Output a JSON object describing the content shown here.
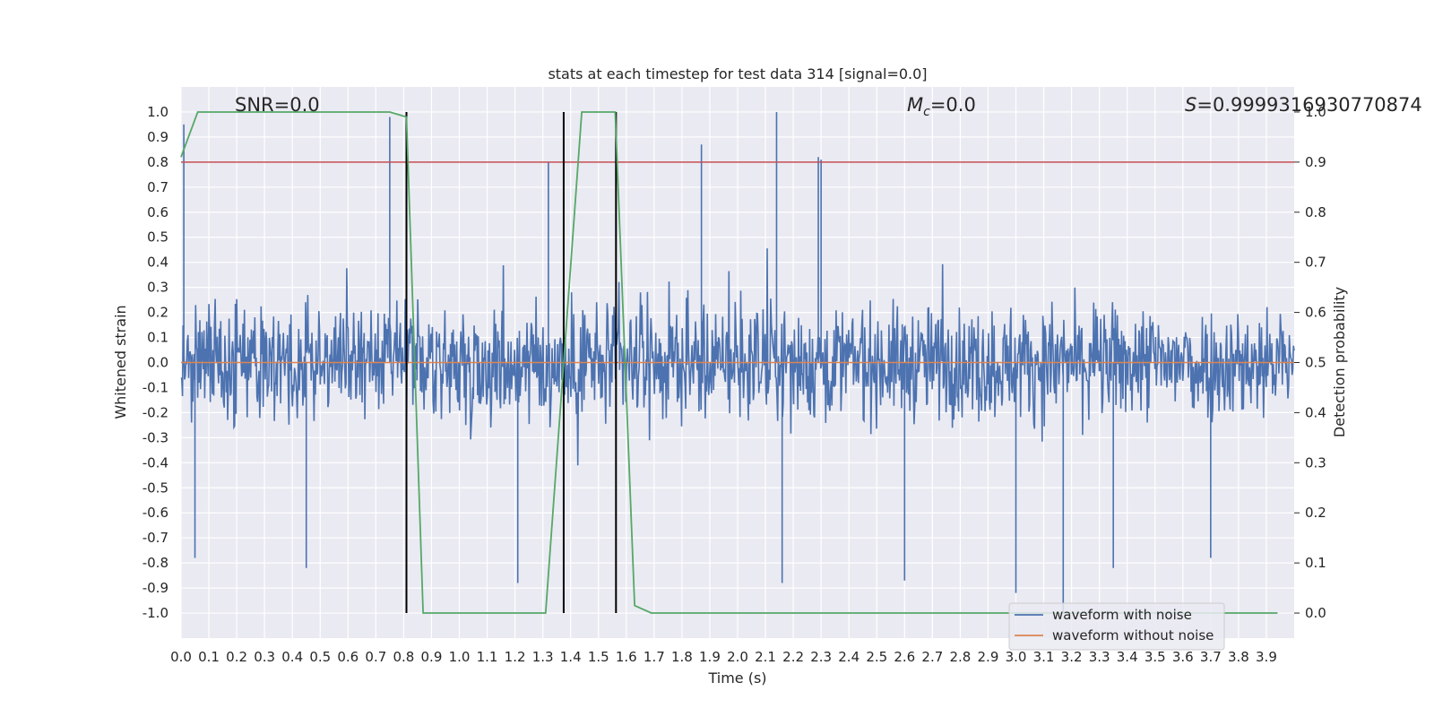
{
  "chart_data": {
    "type": "line",
    "title": "stats at each timestep for test data 314 [signal=0.0]",
    "xlabel": "Time (s)",
    "ylabel": "Whitened strain",
    "y2label": "Detection probability",
    "xlim": [
      0.0,
      4.0
    ],
    "ylim": [
      -1.1,
      1.1
    ],
    "y2lim": [
      -0.05,
      1.05
    ],
    "x_ticks": [
      "0.0",
      "0.1",
      "0.2",
      "0.3",
      "0.4",
      "0.5",
      "0.6",
      "0.7",
      "0.8",
      "0.9",
      "1.0",
      "1.1",
      "1.2",
      "1.3",
      "1.4",
      "1.5",
      "1.6",
      "1.7",
      "1.8",
      "1.9",
      "2.0",
      "2.1",
      "2.2",
      "2.3",
      "2.4",
      "2.5",
      "2.6",
      "2.7",
      "2.8",
      "2.9",
      "3.0",
      "3.1",
      "3.2",
      "3.3",
      "3.4",
      "3.5",
      "3.6",
      "3.7",
      "3.8",
      "3.9"
    ],
    "y_ticks": [
      "1.0",
      "0.9",
      "0.8",
      "0.7",
      "0.6",
      "0.5",
      "0.4",
      "0.3",
      "0.2",
      "0.1",
      "0.0",
      "-0.1",
      "-0.2",
      "-0.3",
      "-0.4",
      "-0.5",
      "-0.6",
      "-0.7",
      "-0.8",
      "-0.9",
      "-1.0"
    ],
    "y2_ticks": [
      "1.0",
      "0.9",
      "0.8",
      "0.7",
      "0.6",
      "0.5",
      "0.4",
      "0.3",
      "0.2",
      "0.1",
      "0.0"
    ],
    "annotations": {
      "snr": "SNR=0.0",
      "mc_symbol": "M",
      "mc_sub": "c",
      "mc_value": "=0.0",
      "s_symbol": "S",
      "s_value": "=0.9999316930770874"
    },
    "threshold": {
      "value": 0.9,
      "axis": "right",
      "color": "#c44e52"
    },
    "vertical_markers": [
      0.81,
      1.375,
      1.563
    ],
    "series": [
      {
        "name": "waveform with noise",
        "color": "#4c72b0",
        "axis": "left",
        "note": "dense whitened noise, roughly ±0.5 with peaks up to 1.0 / -1.0",
        "peaks": [
          [
            0.01,
            0.95
          ],
          [
            0.75,
            0.98
          ],
          [
            2.14,
            1.0
          ],
          [
            1.32,
            0.8
          ],
          [
            2.29,
            0.82
          ],
          [
            1.87,
            0.87
          ],
          [
            2.3,
            0.81
          ],
          [
            3.0,
            -0.92
          ],
          [
            3.17,
            -1.0
          ],
          [
            1.21,
            -0.88
          ],
          [
            2.16,
            -0.88
          ],
          [
            2.6,
            -0.87
          ],
          [
            3.35,
            -0.82
          ],
          [
            0.45,
            -0.82
          ],
          [
            0.05,
            -0.78
          ],
          [
            3.7,
            -0.78
          ]
        ]
      },
      {
        "name": "waveform without noise",
        "color": "#dd8452",
        "axis": "left",
        "x": [
          0.0,
          4.0
        ],
        "y": [
          0.0,
          0.0
        ]
      },
      {
        "name": "Detection probability",
        "color": "#55a868",
        "axis": "right",
        "x": [
          0.0,
          0.06,
          0.12,
          0.75,
          0.81,
          0.87,
          1.31,
          1.44,
          1.49,
          1.56,
          1.63,
          1.69,
          3.94
        ],
        "y": [
          0.91,
          1.0,
          1.0,
          1.0,
          0.99,
          0.0,
          0.0,
          1.0,
          1.0,
          1.0,
          0.015,
          0.0,
          0.0
        ]
      }
    ],
    "legend": {
      "placement": "lower-right",
      "entries": [
        "waveform with noise",
        "waveform without noise"
      ]
    }
  }
}
